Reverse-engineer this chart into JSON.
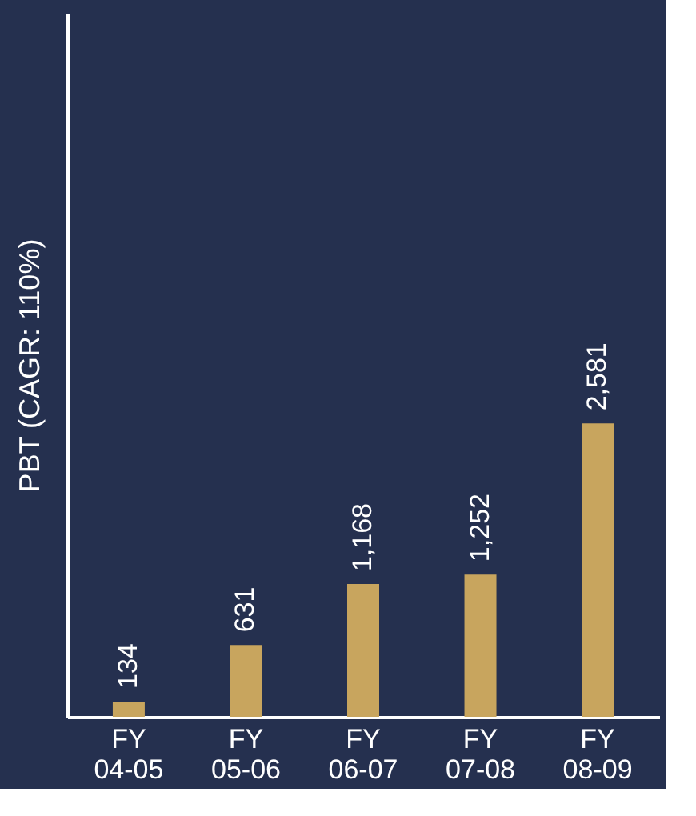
{
  "chart_data": {
    "type": "bar",
    "ylabel": "PBT (CAGR: 110%)",
    "categories": [
      "FY 04-05",
      "FY 05-06",
      "FY 06-07",
      "FY 07-08",
      "FY 08-09"
    ],
    "values": [
      134,
      631,
      1168,
      1252,
      2581
    ],
    "value_labels": [
      "134",
      "631",
      "1,168",
      "1,252",
      "2,581"
    ],
    "color": "#c8a55e",
    "grid": false
  }
}
